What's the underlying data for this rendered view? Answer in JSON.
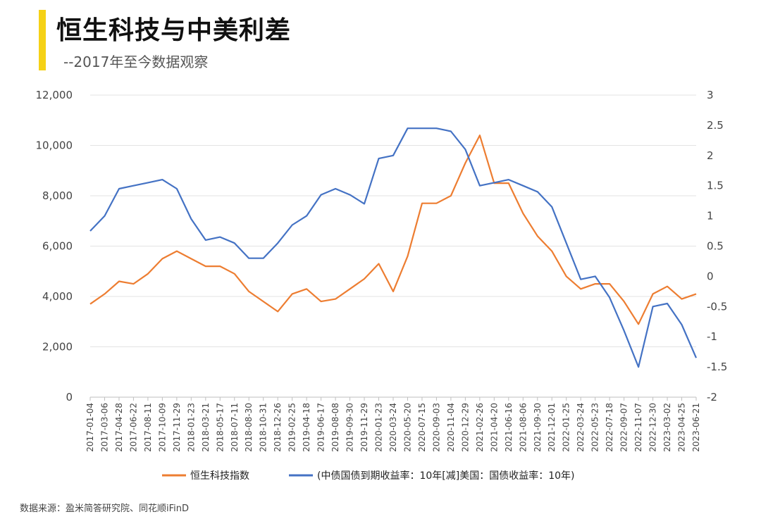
{
  "header": {
    "title": "恒生科技与中美利差",
    "subtitle": "--2017年至今数据观察",
    "accent_color": "#f5d116"
  },
  "footer": {
    "source": "数据来源：盈米简答研究院、同花顺iFinD"
  },
  "chart_data": {
    "type": "line",
    "title": "",
    "xlabel": "",
    "ylabel": "",
    "grid": true,
    "legend_position": "bottom",
    "x_ticks": [
      "2017-01-04",
      "2017-03-06",
      "2017-04-28",
      "2017-06-22",
      "2017-08-11",
      "2017-10-09",
      "2017-11-29",
      "2018-01-23",
      "2018-03-21",
      "2018-05-17",
      "2018-07-11",
      "2018-08-30",
      "2018-10-31",
      "2018-12-26",
      "2019-02-25",
      "2019-04-18",
      "2019-06-17",
      "2019-08-08",
      "2019-09-30",
      "2019-11-29",
      "2020-01-23",
      "2020-03-24",
      "2020-05-20",
      "2020-07-15",
      "2020-09-03",
      "2020-11-04",
      "2020-12-29",
      "2021-02-26",
      "2021-04-20",
      "2021-06-16",
      "2021-08-06",
      "2021-09-30",
      "2021-12-01",
      "2022-01-25",
      "2022-03-24",
      "2022-05-23",
      "2022-07-18",
      "2022-09-07",
      "2022-11-07",
      "2022-12-30",
      "2023-03-02",
      "2023-04-25",
      "2023-06-21"
    ],
    "y_left": {
      "ticks": [
        0,
        2000,
        4000,
        6000,
        8000,
        10000,
        12000
      ],
      "tick_labels": [
        "0",
        "2,000",
        "4,000",
        "6,000",
        "8,000",
        "10,000",
        "12,000"
      ],
      "ylim": [
        0,
        12000
      ]
    },
    "y_right": {
      "ticks": [
        -2,
        -1.5,
        -1,
        -0.5,
        0,
        0.5,
        1,
        1.5,
        2,
        2.5,
        3
      ],
      "tick_labels": [
        "-2",
        "-1.5",
        "-1",
        "-0.5",
        "0",
        "0.5",
        "1",
        "1.5",
        "2",
        "2.5",
        "3"
      ],
      "ylim": [
        -2,
        3
      ]
    },
    "series": [
      {
        "name": "恒生科技指数",
        "axis": "left",
        "color": "#ed7d31",
        "x": [
          "2017-01-04",
          "2017-03-06",
          "2017-04-28",
          "2017-06-22",
          "2017-08-11",
          "2017-10-09",
          "2017-11-29",
          "2018-01-23",
          "2018-03-21",
          "2018-05-17",
          "2018-07-11",
          "2018-08-30",
          "2018-10-31",
          "2018-12-26",
          "2019-02-25",
          "2019-04-18",
          "2019-06-17",
          "2019-08-08",
          "2019-09-30",
          "2019-11-29",
          "2020-01-23",
          "2020-03-24",
          "2020-05-20",
          "2020-07-15",
          "2020-09-03",
          "2020-11-04",
          "2020-12-29",
          "2021-02-26",
          "2021-04-20",
          "2021-06-16",
          "2021-08-06",
          "2021-09-30",
          "2021-12-01",
          "2022-01-25",
          "2022-03-24",
          "2022-05-23",
          "2022-07-18",
          "2022-09-07",
          "2022-11-07",
          "2022-12-30",
          "2023-03-02",
          "2023-04-25",
          "2023-06-21"
        ],
        "values": [
          3700,
          4100,
          4600,
          4500,
          4900,
          5500,
          5800,
          5500,
          5200,
          5200,
          4900,
          4200,
          3800,
          3400,
          4100,
          4300,
          3800,
          3900,
          4300,
          4700,
          5300,
          4200,
          5600,
          7700,
          7700,
          8000,
          9300,
          10400,
          8500,
          8500,
          7300,
          6400,
          5800,
          4800,
          4300,
          4500,
          4500,
          3800,
          2900,
          4100,
          4400,
          3900,
          4100
        ]
      },
      {
        "name": "(中债国债到期收益率：10年[减]美国：国债收益率：10年)",
        "axis": "right",
        "color": "#4472c4",
        "x": [
          "2017-01-04",
          "2017-03-06",
          "2017-04-28",
          "2017-06-22",
          "2017-08-11",
          "2017-10-09",
          "2017-11-29",
          "2018-01-23",
          "2018-03-21",
          "2018-05-17",
          "2018-07-11",
          "2018-08-30",
          "2018-10-31",
          "2018-12-26",
          "2019-02-25",
          "2019-04-18",
          "2019-06-17",
          "2019-08-08",
          "2019-09-30",
          "2019-11-29",
          "2020-01-23",
          "2020-03-24",
          "2020-05-20",
          "2020-07-15",
          "2020-09-03",
          "2020-11-04",
          "2020-12-29",
          "2021-02-26",
          "2021-04-20",
          "2021-06-16",
          "2021-08-06",
          "2021-09-30",
          "2021-12-01",
          "2022-01-25",
          "2022-03-24",
          "2022-05-23",
          "2022-07-18",
          "2022-09-07",
          "2022-11-07",
          "2022-12-30",
          "2023-03-02",
          "2023-04-25",
          "2023-06-21"
        ],
        "values": [
          0.75,
          1.0,
          1.45,
          1.5,
          1.55,
          1.6,
          1.45,
          0.95,
          0.6,
          0.65,
          0.55,
          0.3,
          0.3,
          0.55,
          0.85,
          1.0,
          1.35,
          1.45,
          1.35,
          1.2,
          1.95,
          2.0,
          2.45,
          2.45,
          2.45,
          2.4,
          2.1,
          1.5,
          1.55,
          1.6,
          1.5,
          1.4,
          1.15,
          0.55,
          -0.05,
          0.0,
          -0.35,
          -0.9,
          -1.5,
          -0.5,
          -0.45,
          -0.8,
          -1.35
        ]
      }
    ]
  }
}
